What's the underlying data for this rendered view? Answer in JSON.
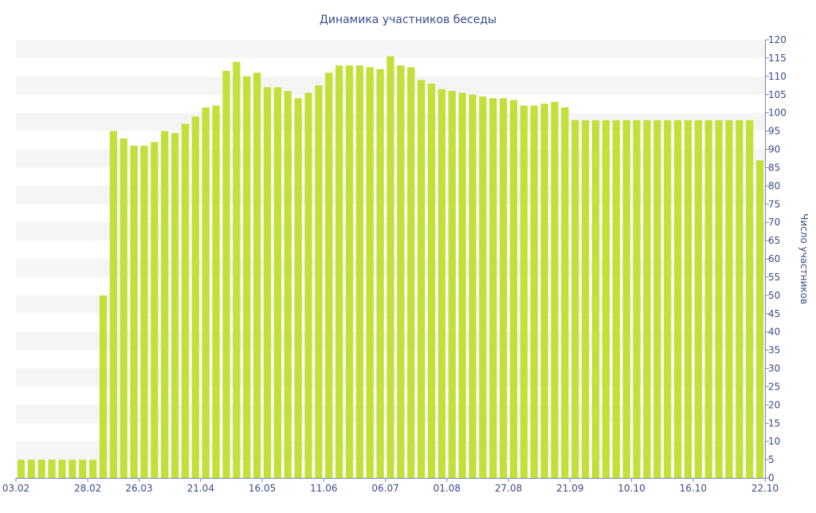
{
  "chart_data": {
    "type": "bar",
    "title": "Динамика участников беседы",
    "ylabel": "Число участников",
    "xlabel": "",
    "ylim": [
      0,
      120
    ],
    "y_ticks": [
      0,
      5,
      10,
      15,
      20,
      25,
      30,
      35,
      40,
      45,
      50,
      55,
      60,
      65,
      70,
      75,
      80,
      85,
      90,
      95,
      100,
      105,
      110,
      115,
      120
    ],
    "y_axis_side": "right",
    "grid": "alternating horizontal bands",
    "x_tick_labels": [
      {
        "index": 0,
        "label": "03.02"
      },
      {
        "index": 7,
        "label": "28.02"
      },
      {
        "index": 12,
        "label": "26.03"
      },
      {
        "index": 18,
        "label": "21.04"
      },
      {
        "index": 24,
        "label": "16.05"
      },
      {
        "index": 30,
        "label": "11.06"
      },
      {
        "index": 36,
        "label": "06.07"
      },
      {
        "index": 42,
        "label": "01.08"
      },
      {
        "index": 48,
        "label": "27.08"
      },
      {
        "index": 54,
        "label": "21.09"
      },
      {
        "index": 60,
        "label": "10.10"
      },
      {
        "index": 66,
        "label": "16.10"
      },
      {
        "index": 72,
        "label": "22.10"
      }
    ],
    "values": [
      5,
      5,
      5,
      5,
      5,
      5,
      5,
      5,
      50,
      95,
      93,
      91,
      91,
      92,
      95,
      94.5,
      97,
      99,
      101.5,
      102,
      111.5,
      114,
      110,
      111,
      107,
      107,
      106,
      104,
      105.5,
      107.5,
      111,
      113,
      113,
      113,
      112.5,
      112,
      115.5,
      113,
      112.5,
      109,
      108,
      106.5,
      106,
      105.5,
      105,
      104.5,
      104,
      104,
      103.5,
      102,
      102,
      102.5,
      103,
      101.5,
      98,
      98,
      98,
      98,
      98,
      98,
      98,
      98,
      98,
      98,
      98,
      98,
      98,
      98,
      98,
      98,
      98,
      98,
      87
    ],
    "colors": {
      "bar": "#c2e03a",
      "band": "#f5f5f5",
      "text": "#3a4a8a"
    }
  }
}
